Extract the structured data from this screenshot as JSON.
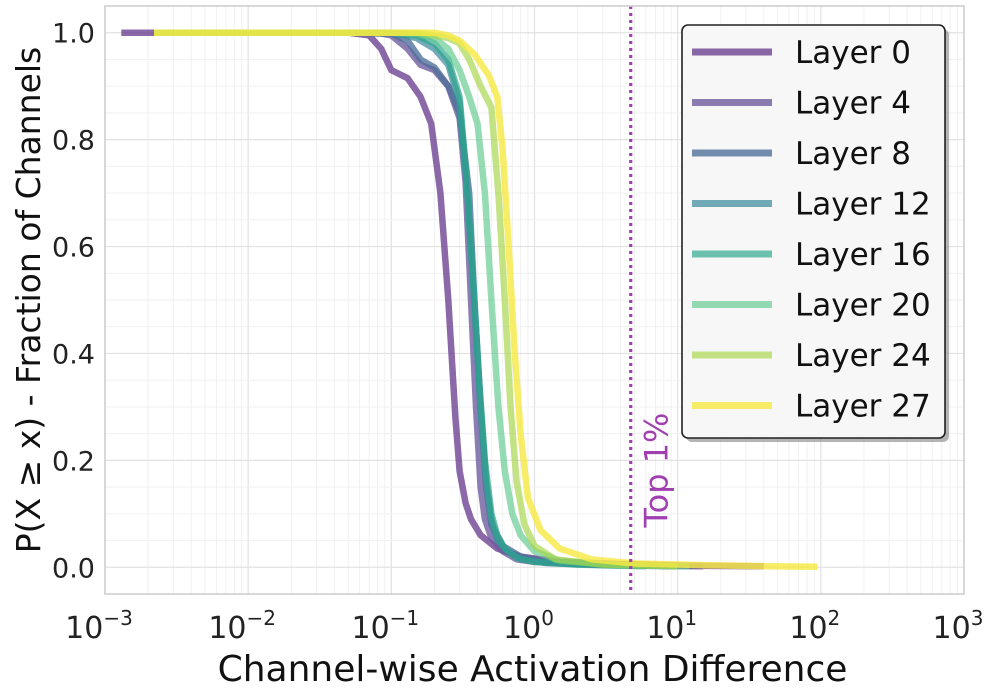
{
  "chart_data": {
    "type": "line",
    "title": "",
    "xlabel": "Channel-wise Activation Difference",
    "ylabel": "P(X ≥ x) - Fraction of Channels",
    "xscale": "log",
    "xlim": [
      0.001,
      1000
    ],
    "ylim": [
      -0.05,
      1.05
    ],
    "grid": true,
    "legend_position": "top-right",
    "x_ticks": [
      {
        "value": 0.001,
        "base": "10",
        "exp": "−3"
      },
      {
        "value": 0.01,
        "base": "10",
        "exp": "−2"
      },
      {
        "value": 0.1,
        "base": "10",
        "exp": "−1"
      },
      {
        "value": 1,
        "base": "10",
        "exp": "0"
      },
      {
        "value": 10,
        "base": "10",
        "exp": "1"
      },
      {
        "value": 100,
        "base": "10",
        "exp": "2"
      },
      {
        "value": 1000,
        "base": "10",
        "exp": "3"
      }
    ],
    "y_ticks": [
      {
        "value": 0.0,
        "label": "0.0"
      },
      {
        "value": 0.2,
        "label": "0.2"
      },
      {
        "value": 0.4,
        "label": "0.4"
      },
      {
        "value": 0.6,
        "label": "0.6"
      },
      {
        "value": 0.8,
        "label": "0.8"
      },
      {
        "value": 1.0,
        "label": "1.0"
      }
    ],
    "annotation": {
      "text": "Top 1%",
      "x": 4.7,
      "color": "#a040b0"
    },
    "series": [
      {
        "name": "Layer 0",
        "color": "#6a3d8f",
        "opacity": 0.78,
        "x": [
          0.0013,
          0.01,
          0.05,
          0.07,
          0.085,
          0.1,
          0.13,
          0.16,
          0.19,
          0.22,
          0.25,
          0.28,
          0.3,
          0.33,
          0.36,
          0.42,
          0.55,
          0.8,
          1.5,
          4,
          12,
          40
        ],
        "y": [
          1.0,
          1.0,
          1.0,
          0.995,
          0.97,
          0.93,
          0.915,
          0.88,
          0.83,
          0.7,
          0.5,
          0.28,
          0.18,
          0.12,
          0.09,
          0.06,
          0.035,
          0.02,
          0.01,
          0.006,
          0.003,
          0.002
        ]
      },
      {
        "name": "Layer 4",
        "color": "#6b5a9c",
        "opacity": 0.78,
        "x": [
          0.0022,
          0.01,
          0.05,
          0.08,
          0.1,
          0.13,
          0.16,
          0.2,
          0.25,
          0.3,
          0.33,
          0.36,
          0.39,
          0.42,
          0.45,
          0.5,
          0.6,
          0.75,
          1.0,
          2,
          6,
          15
        ],
        "y": [
          1.0,
          1.0,
          1.0,
          1.0,
          0.995,
          0.97,
          0.94,
          0.93,
          0.9,
          0.84,
          0.72,
          0.5,
          0.3,
          0.15,
          0.09,
          0.055,
          0.03,
          0.015,
          0.01,
          0.006,
          0.003,
          0.002
        ]
      },
      {
        "name": "Layer 8",
        "color": "#4d6e9a",
        "opacity": 0.78,
        "x": [
          0.0022,
          0.01,
          0.05,
          0.1,
          0.13,
          0.16,
          0.2,
          0.25,
          0.3,
          0.35,
          0.38,
          0.42,
          0.46,
          0.5,
          0.6,
          0.8,
          1.2,
          3,
          10
        ],
        "y": [
          1.0,
          1.0,
          1.0,
          0.998,
          0.985,
          0.95,
          0.935,
          0.9,
          0.85,
          0.7,
          0.5,
          0.3,
          0.15,
          0.08,
          0.04,
          0.02,
          0.01,
          0.005,
          0.002
        ]
      },
      {
        "name": "Layer 12",
        "color": "#3e8a9e",
        "opacity": 0.72,
        "x": [
          0.0022,
          0.01,
          0.05,
          0.1,
          0.15,
          0.2,
          0.25,
          0.3,
          0.34,
          0.38,
          0.42,
          0.46,
          0.5,
          0.55,
          0.65,
          0.8,
          1.2,
          3,
          10
        ],
        "y": [
          1.0,
          1.0,
          1.0,
          1.0,
          0.99,
          0.97,
          0.94,
          0.87,
          0.7,
          0.5,
          0.3,
          0.16,
          0.09,
          0.05,
          0.03,
          0.015,
          0.008,
          0.004,
          0.002
        ]
      },
      {
        "name": "Layer 16",
        "color": "#2aa68a",
        "opacity": 0.68,
        "x": [
          0.0022,
          0.01,
          0.05,
          0.1,
          0.15,
          0.2,
          0.25,
          0.3,
          0.33,
          0.37,
          0.41,
          0.45,
          0.5,
          0.55,
          0.62,
          0.75,
          1.0,
          2,
          6
        ],
        "y": [
          1.0,
          1.0,
          1.0,
          1.0,
          0.995,
          0.98,
          0.95,
          0.88,
          0.75,
          0.55,
          0.35,
          0.2,
          0.1,
          0.06,
          0.035,
          0.018,
          0.01,
          0.005,
          0.002
        ]
      },
      {
        "name": "Layer 20",
        "color": "#5cc88a",
        "opacity": 0.65,
        "x": [
          0.0022,
          0.01,
          0.05,
          0.1,
          0.15,
          0.2,
          0.25,
          0.3,
          0.35,
          0.4,
          0.45,
          0.5,
          0.56,
          0.62,
          0.7,
          0.8,
          1.0,
          1.5,
          4,
          12
        ],
        "y": [
          1.0,
          1.0,
          1.0,
          1.0,
          0.998,
          0.99,
          0.97,
          0.93,
          0.88,
          0.83,
          0.7,
          0.5,
          0.3,
          0.18,
          0.1,
          0.06,
          0.03,
          0.012,
          0.004,
          0.002
        ]
      },
      {
        "name": "Layer 24",
        "color": "#a6d64a",
        "opacity": 0.68,
        "x": [
          0.0022,
          0.01,
          0.05,
          0.1,
          0.15,
          0.2,
          0.25,
          0.3,
          0.35,
          0.42,
          0.5,
          0.56,
          0.62,
          0.68,
          0.75,
          0.85,
          1.0,
          1.4,
          3,
          10
        ],
        "y": [
          1.0,
          1.0,
          1.0,
          1.0,
          1.0,
          0.995,
          0.99,
          0.98,
          0.95,
          0.9,
          0.86,
          0.7,
          0.5,
          0.3,
          0.16,
          0.08,
          0.04,
          0.015,
          0.005,
          0.002
        ]
      },
      {
        "name": "Layer 27",
        "color": "#f7e944",
        "opacity": 0.82,
        "x": [
          0.0022,
          0.01,
          0.05,
          0.1,
          0.15,
          0.2,
          0.25,
          0.3,
          0.38,
          0.48,
          0.55,
          0.6,
          0.66,
          0.72,
          0.8,
          0.9,
          1.1,
          1.5,
          2.5,
          5,
          15,
          40,
          95
        ],
        "y": [
          1.0,
          1.0,
          1.0,
          1.0,
          1.0,
          1.0,
          0.995,
          0.985,
          0.96,
          0.92,
          0.88,
          0.78,
          0.6,
          0.42,
          0.25,
          0.13,
          0.07,
          0.035,
          0.015,
          0.007,
          0.004,
          0.002,
          0.001
        ]
      }
    ]
  }
}
